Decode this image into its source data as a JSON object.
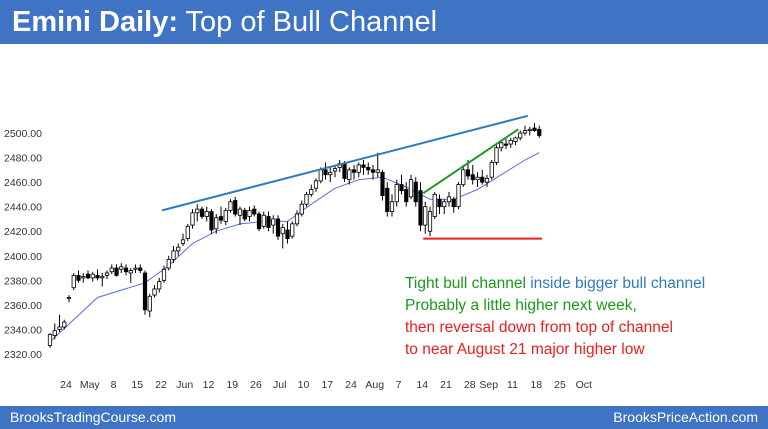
{
  "header": {
    "title_bold": "Emini Daily:",
    "title_rest": "Top of Bull Channel"
  },
  "footer": {
    "left": "BrooksTradingCourse.com",
    "right": "BrooksPriceAction.com"
  },
  "annotations": {
    "line1a": "Tight bull channel",
    "line1b": "inside bigger bull channel",
    "line2": "Probably a little higher next week,",
    "line3": "then reversal down from top of channel",
    "line4": "to near August 21 major higher low"
  },
  "colors": {
    "header_bg": "#3f73c4",
    "tight_channel": "#1a9a1a",
    "big_channel": "#2e7bc0",
    "support": "#e8201c",
    "ema": "#5a6fd6",
    "candle_up": "#ffffff",
    "candle_down": "#000000"
  },
  "chart_data": {
    "type": "candlestick",
    "title": "",
    "ylim": [
      2315,
      2520
    ],
    "y_ticks": [
      "2320.00",
      "2340.00",
      "2360.00",
      "2380.00",
      "2400.00",
      "2420.00",
      "2440.00",
      "2460.00",
      "2480.00",
      "2500.00"
    ],
    "x_tick_labels": [
      "24",
      "May",
      "8",
      "15",
      "22",
      "Jun",
      "12",
      "19",
      "26",
      "Jul",
      "10",
      "17",
      "24",
      "Aug",
      "7",
      "14",
      "21",
      "28",
      "Sep",
      "11",
      "18",
      "25",
      "Oct"
    ],
    "x_tick_bar_index": [
      0,
      5,
      10,
      15,
      20,
      25,
      30,
      35,
      40,
      45,
      50,
      55,
      60,
      65,
      70,
      75,
      80,
      85,
      89,
      94,
      99,
      104,
      109
    ],
    "bars": [
      {
        "o": 2327,
        "h": 2337,
        "l": 2325,
        "c": 2336
      },
      {
        "o": 2335,
        "h": 2345,
        "l": 2332,
        "c": 2339
      },
      {
        "o": 2340,
        "h": 2352,
        "l": 2338,
        "c": 2342
      },
      {
        "o": 2342,
        "h": 2348,
        "l": 2340,
        "c": 2346
      },
      {
        "o": 2366,
        "h": 2368,
        "l": 2362,
        "c": 2366
      },
      {
        "o": 2374,
        "h": 2386,
        "l": 2372,
        "c": 2384
      },
      {
        "o": 2384,
        "h": 2388,
        "l": 2378,
        "c": 2380
      },
      {
        "o": 2382,
        "h": 2386,
        "l": 2378,
        "c": 2383
      },
      {
        "o": 2385,
        "h": 2388,
        "l": 2381,
        "c": 2382
      },
      {
        "o": 2382,
        "h": 2387,
        "l": 2379,
        "c": 2385
      },
      {
        "o": 2384,
        "h": 2389,
        "l": 2380,
        "c": 2382
      },
      {
        "o": 2382,
        "h": 2386,
        "l": 2375,
        "c": 2383
      },
      {
        "o": 2384,
        "h": 2388,
        "l": 2381,
        "c": 2386
      },
      {
        "o": 2387,
        "h": 2393,
        "l": 2385,
        "c": 2390
      },
      {
        "o": 2390,
        "h": 2393,
        "l": 2383,
        "c": 2384
      },
      {
        "o": 2389,
        "h": 2394,
        "l": 2386,
        "c": 2391
      },
      {
        "o": 2390,
        "h": 2393,
        "l": 2384,
        "c": 2387
      },
      {
        "o": 2386,
        "h": 2390,
        "l": 2378,
        "c": 2388
      },
      {
        "o": 2389,
        "h": 2393,
        "l": 2386,
        "c": 2390
      },
      {
        "o": 2390,
        "h": 2393,
        "l": 2386,
        "c": 2388
      },
      {
        "o": 2386,
        "h": 2388,
        "l": 2352,
        "c": 2356
      },
      {
        "o": 2355,
        "h": 2369,
        "l": 2350,
        "c": 2367
      },
      {
        "o": 2368,
        "h": 2376,
        "l": 2366,
        "c": 2373
      },
      {
        "o": 2373,
        "h": 2382,
        "l": 2370,
        "c": 2379
      },
      {
        "o": 2380,
        "h": 2392,
        "l": 2378,
        "c": 2389
      },
      {
        "o": 2390,
        "h": 2400,
        "l": 2388,
        "c": 2397
      },
      {
        "o": 2397,
        "h": 2408,
        "l": 2394,
        "c": 2404
      },
      {
        "o": 2404,
        "h": 2410,
        "l": 2400,
        "c": 2407
      },
      {
        "o": 2410,
        "h": 2418,
        "l": 2408,
        "c": 2413
      },
      {
        "o": 2414,
        "h": 2426,
        "l": 2412,
        "c": 2424
      },
      {
        "o": 2425,
        "h": 2438,
        "l": 2422,
        "c": 2435
      },
      {
        "o": 2435,
        "h": 2442,
        "l": 2428,
        "c": 2438
      },
      {
        "o": 2438,
        "h": 2440,
        "l": 2430,
        "c": 2432
      },
      {
        "o": 2432,
        "h": 2440,
        "l": 2428,
        "c": 2436
      },
      {
        "o": 2436,
        "h": 2438,
        "l": 2418,
        "c": 2421
      },
      {
        "o": 2422,
        "h": 2434,
        "l": 2418,
        "c": 2431
      },
      {
        "o": 2432,
        "h": 2440,
        "l": 2426,
        "c": 2429
      },
      {
        "o": 2428,
        "h": 2439,
        "l": 2425,
        "c": 2437
      },
      {
        "o": 2437,
        "h": 2446,
        "l": 2435,
        "c": 2444
      },
      {
        "o": 2445,
        "h": 2448,
        "l": 2432,
        "c": 2434
      },
      {
        "o": 2433,
        "h": 2440,
        "l": 2425,
        "c": 2438
      },
      {
        "o": 2437,
        "h": 2439,
        "l": 2428,
        "c": 2430
      },
      {
        "o": 2432,
        "h": 2440,
        "l": 2428,
        "c": 2437
      },
      {
        "o": 2438,
        "h": 2441,
        "l": 2432,
        "c": 2434
      },
      {
        "o": 2434,
        "h": 2436,
        "l": 2420,
        "c": 2422
      },
      {
        "o": 2424,
        "h": 2436,
        "l": 2422,
        "c": 2433
      },
      {
        "o": 2432,
        "h": 2436,
        "l": 2420,
        "c": 2423
      },
      {
        "o": 2425,
        "h": 2433,
        "l": 2418,
        "c": 2430
      },
      {
        "o": 2430,
        "h": 2433,
        "l": 2413,
        "c": 2416
      },
      {
        "o": 2418,
        "h": 2426,
        "l": 2406,
        "c": 2423
      },
      {
        "o": 2421,
        "h": 2428,
        "l": 2410,
        "c": 2414
      },
      {
        "o": 2416,
        "h": 2428,
        "l": 2414,
        "c": 2426
      },
      {
        "o": 2426,
        "h": 2437,
        "l": 2424,
        "c": 2434
      },
      {
        "o": 2434,
        "h": 2445,
        "l": 2432,
        "c": 2442
      },
      {
        "o": 2442,
        "h": 2452,
        "l": 2440,
        "c": 2450
      },
      {
        "o": 2450,
        "h": 2458,
        "l": 2448,
        "c": 2454
      },
      {
        "o": 2455,
        "h": 2463,
        "l": 2452,
        "c": 2461
      },
      {
        "o": 2461,
        "h": 2472,
        "l": 2459,
        "c": 2470
      },
      {
        "o": 2470,
        "h": 2476,
        "l": 2462,
        "c": 2466
      },
      {
        "o": 2466,
        "h": 2472,
        "l": 2460,
        "c": 2468
      },
      {
        "o": 2469,
        "h": 2474,
        "l": 2464,
        "c": 2471
      },
      {
        "o": 2472,
        "h": 2478,
        "l": 2468,
        "c": 2475
      },
      {
        "o": 2475,
        "h": 2477,
        "l": 2460,
        "c": 2463
      },
      {
        "o": 2462,
        "h": 2472,
        "l": 2458,
        "c": 2470
      },
      {
        "o": 2470,
        "h": 2474,
        "l": 2462,
        "c": 2468
      },
      {
        "o": 2468,
        "h": 2476,
        "l": 2464,
        "c": 2474
      },
      {
        "o": 2474,
        "h": 2478,
        "l": 2466,
        "c": 2472
      },
      {
        "o": 2472,
        "h": 2476,
        "l": 2466,
        "c": 2470
      },
      {
        "o": 2470,
        "h": 2474,
        "l": 2462,
        "c": 2468
      },
      {
        "o": 2468,
        "h": 2484,
        "l": 2464,
        "c": 2470
      },
      {
        "o": 2468,
        "h": 2470,
        "l": 2445,
        "c": 2449
      },
      {
        "o": 2455,
        "h": 2460,
        "l": 2432,
        "c": 2436
      },
      {
        "o": 2436,
        "h": 2450,
        "l": 2432,
        "c": 2444
      },
      {
        "o": 2444,
        "h": 2462,
        "l": 2440,
        "c": 2458
      },
      {
        "o": 2458,
        "h": 2466,
        "l": 2450,
        "c": 2453
      },
      {
        "o": 2454,
        "h": 2460,
        "l": 2440,
        "c": 2444
      },
      {
        "o": 2448,
        "h": 2466,
        "l": 2446,
        "c": 2462
      },
      {
        "o": 2460,
        "h": 2464,
        "l": 2440,
        "c": 2444
      },
      {
        "o": 2453,
        "h": 2460,
        "l": 2420,
        "c": 2425
      },
      {
        "o": 2425,
        "h": 2444,
        "l": 2418,
        "c": 2440
      },
      {
        "o": 2420,
        "h": 2440,
        "l": 2416,
        "c": 2436
      },
      {
        "o": 2432,
        "h": 2452,
        "l": 2430,
        "c": 2450
      },
      {
        "o": 2446,
        "h": 2450,
        "l": 2434,
        "c": 2440
      },
      {
        "o": 2440,
        "h": 2446,
        "l": 2434,
        "c": 2444
      },
      {
        "o": 2444,
        "h": 2452,
        "l": 2440,
        "c": 2448
      },
      {
        "o": 2446,
        "h": 2448,
        "l": 2435,
        "c": 2440
      },
      {
        "o": 2440,
        "h": 2460,
        "l": 2438,
        "c": 2458
      },
      {
        "o": 2458,
        "h": 2474,
        "l": 2456,
        "c": 2470
      },
      {
        "o": 2470,
        "h": 2478,
        "l": 2462,
        "c": 2465
      },
      {
        "o": 2466,
        "h": 2474,
        "l": 2458,
        "c": 2462
      },
      {
        "o": 2462,
        "h": 2468,
        "l": 2456,
        "c": 2464
      },
      {
        "o": 2464,
        "h": 2470,
        "l": 2458,
        "c": 2460
      },
      {
        "o": 2460,
        "h": 2466,
        "l": 2456,
        "c": 2463
      },
      {
        "o": 2464,
        "h": 2478,
        "l": 2462,
        "c": 2476
      },
      {
        "o": 2476,
        "h": 2490,
        "l": 2474,
        "c": 2488
      },
      {
        "o": 2488,
        "h": 2494,
        "l": 2485,
        "c": 2492
      },
      {
        "o": 2491,
        "h": 2495,
        "l": 2487,
        "c": 2490
      },
      {
        "o": 2491,
        "h": 2496,
        "l": 2488,
        "c": 2494
      },
      {
        "o": 2493,
        "h": 2497,
        "l": 2490,
        "c": 2496
      },
      {
        "o": 2496,
        "h": 2502,
        "l": 2494,
        "c": 2500
      },
      {
        "o": 2500,
        "h": 2506,
        "l": 2498,
        "c": 2502
      },
      {
        "o": 2502,
        "h": 2505,
        "l": 2498,
        "c": 2503
      },
      {
        "o": 2504,
        "h": 2508,
        "l": 2501,
        "c": 2502
      },
      {
        "o": 2503,
        "h": 2506,
        "l": 2496,
        "c": 2498
      }
    ],
    "ema20": [
      [
        0,
        2330
      ],
      [
        10,
        2366
      ],
      [
        20,
        2378
      ],
      [
        25,
        2392
      ],
      [
        30,
        2410
      ],
      [
        35,
        2420
      ],
      [
        40,
        2426
      ],
      [
        45,
        2428
      ],
      [
        50,
        2428
      ],
      [
        55,
        2442
      ],
      [
        60,
        2455
      ],
      [
        65,
        2462
      ],
      [
        70,
        2464
      ],
      [
        75,
        2456
      ],
      [
        80,
        2446
      ],
      [
        85,
        2446
      ],
      [
        90,
        2454
      ],
      [
        95,
        2466
      ],
      [
        100,
        2478
      ],
      [
        103,
        2484
      ]
    ],
    "lines": [
      {
        "name": "big_channel",
        "from": [
          24,
          2437
        ],
        "to": [
          101,
          2514
        ]
      },
      {
        "name": "tight_channel",
        "from": [
          79,
          2451
        ],
        "to": [
          99,
          2503
        ]
      },
      {
        "name": "support",
        "from": [
          79,
          2414
        ],
        "to": [
          104,
          2414
        ]
      }
    ]
  }
}
